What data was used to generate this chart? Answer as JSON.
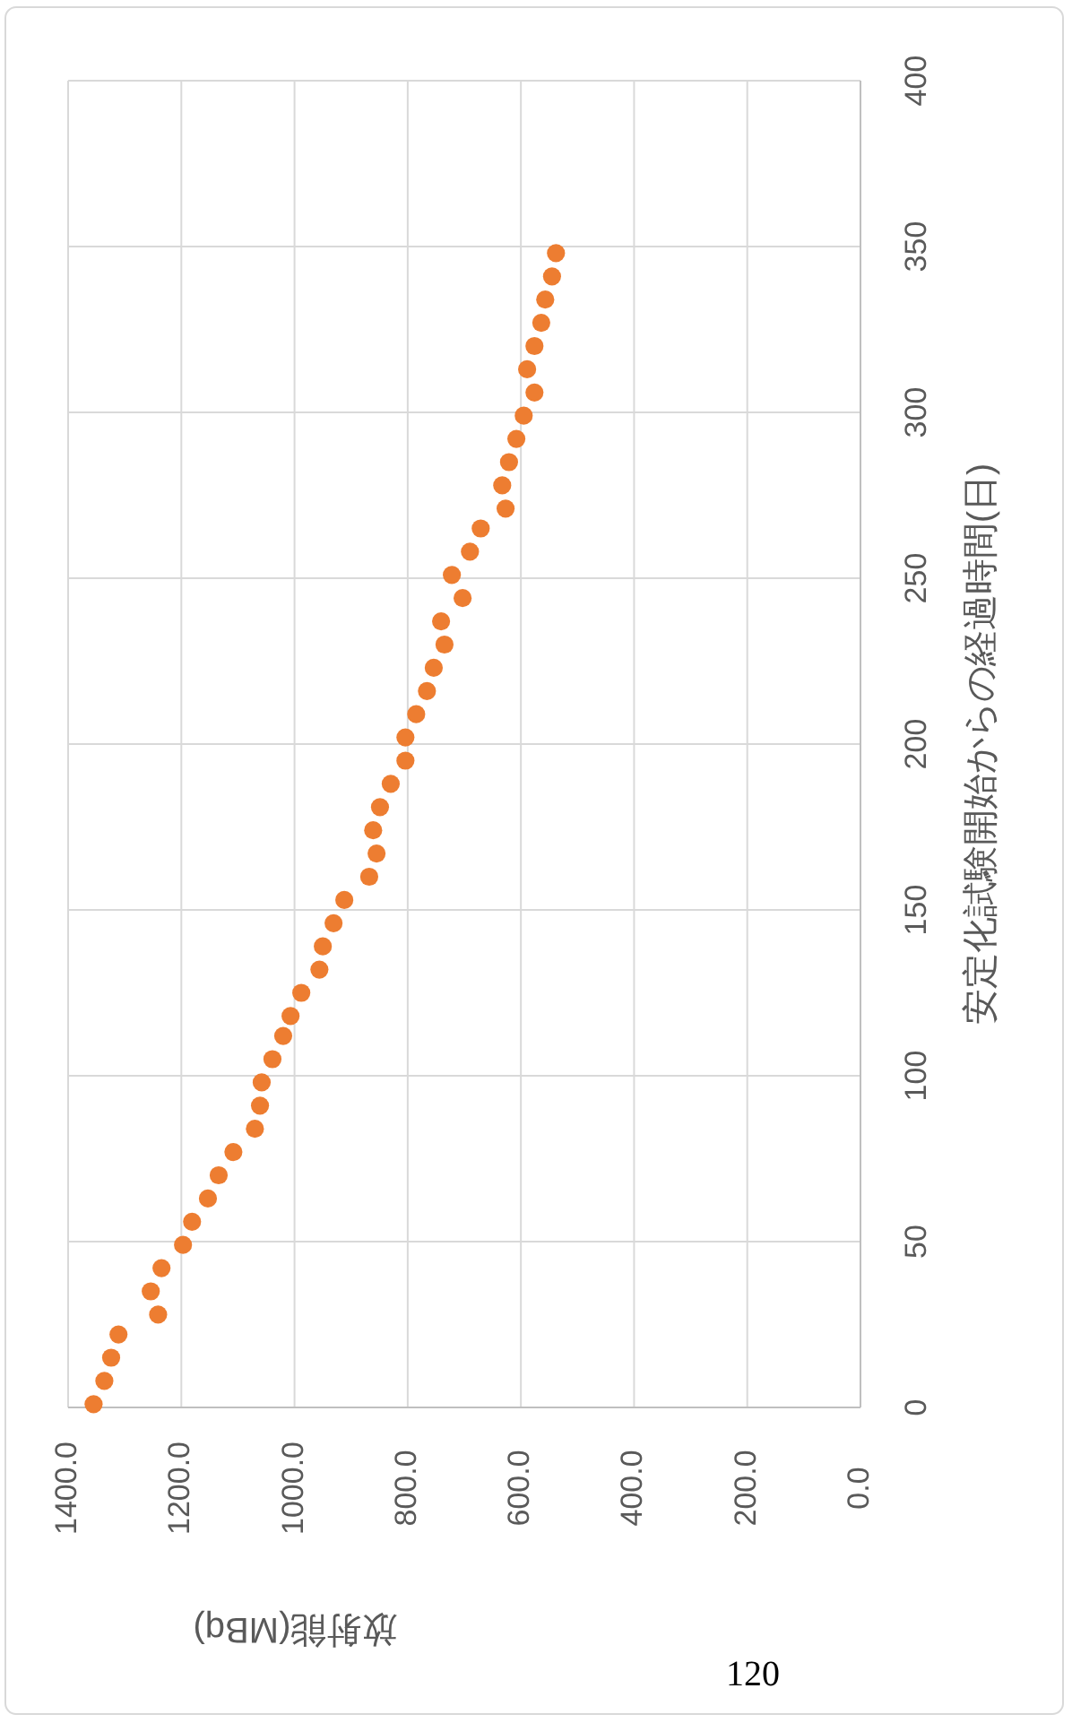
{
  "chart_data": {
    "type": "scatter",
    "xlabel": "放射能(MBq)",
    "ylabel": "安定化試験開始からの経過時間(日)",
    "annotations": [
      "120"
    ],
    "xlim": [
      1400,
      0
    ],
    "xticks": [
      {
        "value": 1400,
        "label": "1400.0"
      },
      {
        "value": 1200,
        "label": "1200.0"
      },
      {
        "value": 1000,
        "label": "1000.0"
      },
      {
        "value": 800,
        "label": "800.0"
      },
      {
        "value": 600,
        "label": "600.0"
      },
      {
        "value": 400,
        "label": "400.0"
      },
      {
        "value": 200,
        "label": "200.0"
      },
      {
        "value": 0,
        "label": "0.0"
      }
    ],
    "ylim": [
      0,
      400
    ],
    "yticks": [
      0,
      50,
      100,
      150,
      200,
      250,
      300,
      350,
      400
    ],
    "grid": true,
    "marker": "circle",
    "series": [
      {
        "color": "#ed7d31",
        "x": [
          1355,
          1336,
          1324,
          1311,
          1241,
          1254,
          1235,
          1197,
          1181,
          1153,
          1134,
          1108,
          1070,
          1061,
          1058,
          1039,
          1020,
          1007,
          988,
          956,
          950,
          931,
          912,
          868,
          855,
          861,
          849,
          830,
          804,
          804,
          785,
          766,
          754,
          735,
          741,
          703,
          722,
          690,
          671,
          627,
          633,
          621,
          608,
          595,
          576,
          589,
          576,
          564,
          557,
          545,
          538
        ],
        "values": [
          1,
          8,
          15,
          22,
          28,
          35,
          42,
          49,
          56,
          63,
          70,
          77,
          84,
          91,
          98,
          105,
          112,
          118,
          125,
          132,
          139,
          146,
          153,
          160,
          167,
          174,
          181,
          188,
          195,
          202,
          209,
          216,
          223,
          230,
          237,
          244,
          251,
          258,
          265,
          271,
          278,
          285,
          292,
          299,
          306,
          313,
          320,
          327,
          334,
          341,
          348
        ]
      }
    ]
  }
}
